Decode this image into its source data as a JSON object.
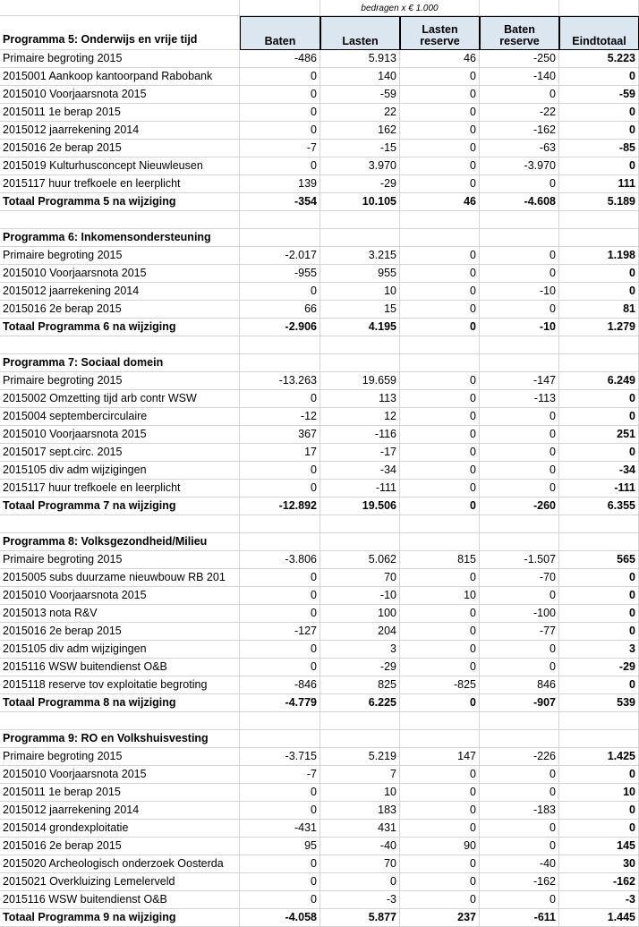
{
  "header": {
    "note": "bedragen x € 1.000",
    "title": "Programma 5: Onderwijs en vrije tijd",
    "columns": [
      "Baten",
      "Lasten",
      "Lasten reserve",
      "Baten reserve",
      "Eindtotaal"
    ]
  },
  "sections": [
    {
      "title": "Programma 5: Onderwijs en vrije tijd",
      "rows": [
        [
          "Primaire begroting 2015",
          "-486",
          "5.913",
          "46",
          "-250",
          "5.223"
        ],
        [
          "2015001 Aankoop kantoorpand Rabobank",
          "0",
          "140",
          "0",
          "-140",
          "0"
        ],
        [
          "2015010 Voorjaarsnota 2015",
          "0",
          "-59",
          "0",
          "0",
          "-59"
        ],
        [
          "2015011 1e berap 2015",
          "0",
          "22",
          "0",
          "-22",
          "0"
        ],
        [
          "2015012 jaarrekening 2014",
          "0",
          "162",
          "0",
          "-162",
          "0"
        ],
        [
          "2015016 2e berap 2015",
          "-7",
          "-15",
          "0",
          "-63",
          "-85"
        ],
        [
          "2015019 Kulturhusconcept Nieuwleusen",
          "0",
          "3.970",
          "0",
          "-3.970",
          "0"
        ],
        [
          "2015117 huur trefkoele en leerplicht",
          "139",
          "-29",
          "0",
          "0",
          "111"
        ]
      ],
      "total": [
        "Totaal Programma 5 na wijziging",
        "-354",
        "10.105",
        "46",
        "-4.608",
        "5.189"
      ]
    },
    {
      "title": "Programma 6: Inkomensondersteuning",
      "rows": [
        [
          "Primaire begroting 2015",
          "-2.017",
          "3.215",
          "0",
          "0",
          "1.198"
        ],
        [
          "2015010 Voorjaarsnota 2015",
          "-955",
          "955",
          "0",
          "0",
          "0"
        ],
        [
          "2015012 jaarrekening 2014",
          "0",
          "10",
          "0",
          "-10",
          "0"
        ],
        [
          "2015016 2e berap 2015",
          "66",
          "15",
          "0",
          "0",
          "81"
        ]
      ],
      "total": [
        "Totaal Programma 6 na wijziging",
        "-2.906",
        "4.195",
        "0",
        "-10",
        "1.279"
      ]
    },
    {
      "title": "Programma 7:  Sociaal domein",
      "rows": [
        [
          "Primaire begroting 2015",
          "-13.263",
          "19.659",
          "0",
          "-147",
          "6.249"
        ],
        [
          "2015002 Omzetting tijd arb contr WSW",
          "0",
          "113",
          "0",
          "-113",
          "0"
        ],
        [
          "2015004 septembercirculaire",
          "-12",
          "12",
          "0",
          "0",
          "0"
        ],
        [
          "2015010 Voorjaarsnota 2015",
          "367",
          "-116",
          "0",
          "0",
          "251"
        ],
        [
          "2015017 sept.circ. 2015",
          "17",
          "-17",
          "0",
          "0",
          "0"
        ],
        [
          "2015105 div adm wijzigingen",
          "0",
          "-34",
          "0",
          "0",
          "-34"
        ],
        [
          "2015117 huur trefkoele en leerplicht",
          "0",
          "-111",
          "0",
          "0",
          "-111"
        ]
      ],
      "total": [
        "Totaal Programma 7 na wijziging",
        "-12.892",
        "19.506",
        "0",
        "-260",
        "6.355"
      ]
    },
    {
      "title": "Programma 8:  Volksgezondheid/Milieu",
      "rows": [
        [
          "Primaire begroting 2015",
          "-3.806",
          "5.062",
          "815",
          "-1.507",
          "565"
        ],
        [
          "2015005 subs duurzame nieuwbouw RB 201",
          "0",
          "70",
          "0",
          "-70",
          "0"
        ],
        [
          "2015010 Voorjaarsnota 2015",
          "0",
          "-10",
          "10",
          "0",
          "0"
        ],
        [
          "2015013 nota R&V",
          "0",
          "100",
          "0",
          "-100",
          "0"
        ],
        [
          "2015016 2e berap 2015",
          "-127",
          "204",
          "0",
          "-77",
          "0"
        ],
        [
          "2015105 div adm wijzigingen",
          "0",
          "3",
          "0",
          "0",
          "3"
        ],
        [
          "2015116 WSW buitendienst O&B",
          "0",
          "-29",
          "0",
          "0",
          "-29"
        ],
        [
          "2015118 reserve tov exploitatie begroting",
          "-846",
          "825",
          "-825",
          "846",
          "0"
        ]
      ],
      "total": [
        "Totaal Programma 8 na wijziging",
        "-4.779",
        "6.225",
        "0",
        "-907",
        "539"
      ]
    },
    {
      "title": "Programma 9: RO en Volkshuisvesting",
      "rows": [
        [
          "Primaire begroting 2015",
          "-3.715",
          "5.219",
          "147",
          "-226",
          "1.425"
        ],
        [
          "2015010 Voorjaarsnota 2015",
          "-7",
          "7",
          "0",
          "0",
          "0"
        ],
        [
          "2015011 1e berap 2015",
          "0",
          "10",
          "0",
          "0",
          "10"
        ],
        [
          "2015012 jaarrekening 2014",
          "0",
          "183",
          "0",
          "-183",
          "0"
        ],
        [
          "2015014 grondexploitatie",
          "-431",
          "431",
          "0",
          "0",
          "0"
        ],
        [
          "2015016 2e berap 2015",
          "95",
          "-40",
          "90",
          "0",
          "145"
        ],
        [
          "2015020 Archeologisch onderzoek Oosterda",
          "0",
          "70",
          "0",
          "-40",
          "30"
        ],
        [
          "2015021 Overkluizing Lemelerveld",
          "0",
          "0",
          "0",
          "-162",
          "-162"
        ],
        [
          "2015116 WSW buitendienst O&B",
          "0",
          "-3",
          "0",
          "0",
          "-3"
        ]
      ],
      "total": [
        "Totaal Programma 9 na wijziging",
        "-4.058",
        "5.877",
        "237",
        "-611",
        "1.445"
      ]
    }
  ]
}
